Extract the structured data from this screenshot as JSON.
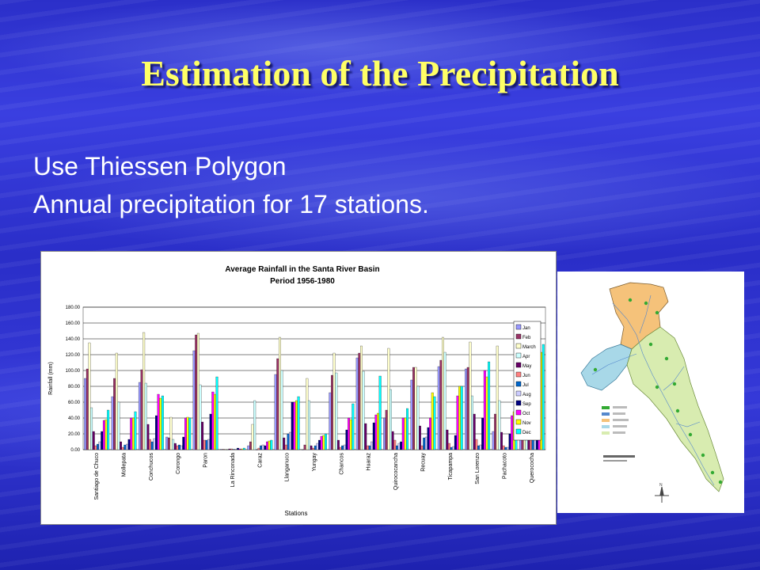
{
  "slide": {
    "title": "Estimation of the Precipitation",
    "bullets": [
      "Use Thiessen Polygon",
      "Annual precipitation for 17 stations."
    ]
  },
  "chart_data": {
    "type": "bar",
    "title": "Average Rainfall in the Santa River Basin",
    "subtitle": "Period 1956-1980",
    "xlabel": "Stations",
    "ylabel": "Rainfall (mm)",
    "ylim": [
      0,
      180
    ],
    "yticks": [
      "0.00",
      "20.00",
      "40.00",
      "60.00",
      "80.00",
      "100.00",
      "120.00",
      "140.00",
      "160.00",
      "180.00"
    ],
    "grid": true,
    "legend_position": "right",
    "categories": [
      "Santiago de Chuco",
      "Mollepata",
      "Conchucos",
      "Corongo",
      "Paron",
      "La Rinconada",
      "Caraz",
      "Llanganuco",
      "Yungay",
      "Chancos",
      "Huaraz",
      "Quirococancha",
      "Recuay",
      "Ticapampa",
      "San Lorenzo",
      "Pachacoto",
      "Querococha"
    ],
    "series": [
      {
        "name": "Jan",
        "color": "#9999ff",
        "values": [
          90,
          67,
          85,
          16,
          125,
          0.5,
          5,
          95,
          0,
          72,
          116,
          40,
          88,
          105,
          102,
          23,
          145
        ]
      },
      {
        "name": "Feb",
        "color": "#993366",
        "values": [
          102,
          90,
          101,
          15,
          145,
          0.5,
          10,
          115,
          6,
          94,
          122,
          50,
          104,
          113,
          104,
          45,
          158
        ]
      },
      {
        "name": "March",
        "color": "#ffffcc",
        "values": [
          135,
          122,
          148,
          41,
          147,
          0.5,
          32,
          142,
          90,
          122,
          131,
          128,
          104,
          142,
          136,
          131,
          146
        ]
      },
      {
        "name": "Apr",
        "color": "#ccffff",
        "values": [
          53,
          60,
          84,
          13,
          82,
          0,
          62,
          100,
          62,
          97,
          99,
          76,
          80,
          123,
          68,
          62,
          105
        ]
      },
      {
        "name": "May",
        "color": "#660066",
        "values": [
          23,
          10,
          32,
          8,
          35,
          1,
          0,
          15,
          5,
          12,
          33,
          23,
          30,
          25,
          45,
          22,
          12
        ]
      },
      {
        "name": "Jun",
        "color": "#ff8080",
        "values": [
          5,
          3,
          13,
          5,
          12,
          1,
          2,
          6,
          2,
          3,
          5,
          12,
          5,
          8,
          13,
          5,
          15
        ]
      },
      {
        "name": "Jul",
        "color": "#0066cc",
        "values": [
          7,
          6,
          10,
          6,
          12,
          0.5,
          5,
          20,
          5,
          5,
          5,
          5,
          15,
          3,
          5,
          3,
          48
        ]
      },
      {
        "name": "Aug",
        "color": "#ccccff",
        "values": [
          10,
          7,
          14,
          5,
          13,
          0.5,
          6,
          22,
          8,
          6,
          10,
          8,
          16,
          4,
          6,
          3,
          50
        ]
      },
      {
        "name": "Sep",
        "color": "#000080",
        "values": [
          23,
          13,
          43,
          16,
          45,
          2,
          5,
          60,
          12,
          25,
          34,
          10,
          28,
          18,
          40,
          20,
          55
        ]
      },
      {
        "name": "Oct",
        "color": "#ff00ff",
        "values": [
          37,
          40,
          70,
          40,
          73,
          1,
          10,
          60,
          17,
          40,
          44,
          40,
          40,
          68,
          100,
          43,
          123
        ]
      },
      {
        "name": "Nov",
        "color": "#ffff00",
        "values": [
          38,
          40,
          65,
          41,
          70,
          1,
          11,
          62,
          18,
          38,
          46,
          40,
          72,
          80,
          92,
          48,
          123
        ]
      },
      {
        "name": "Dec",
        "color": "#00ffff",
        "values": [
          50,
          48,
          68,
          40,
          92,
          2,
          12,
          67,
          20,
          58,
          93,
          52,
          67,
          80,
          111,
          62,
          133
        ]
      }
    ]
  },
  "map": {
    "compass_label": "N",
    "sub_basin_colors": [
      "#f5c27a",
      "#a8d8e8",
      "#d8ecb0"
    ],
    "station_color": "#33aa33"
  }
}
